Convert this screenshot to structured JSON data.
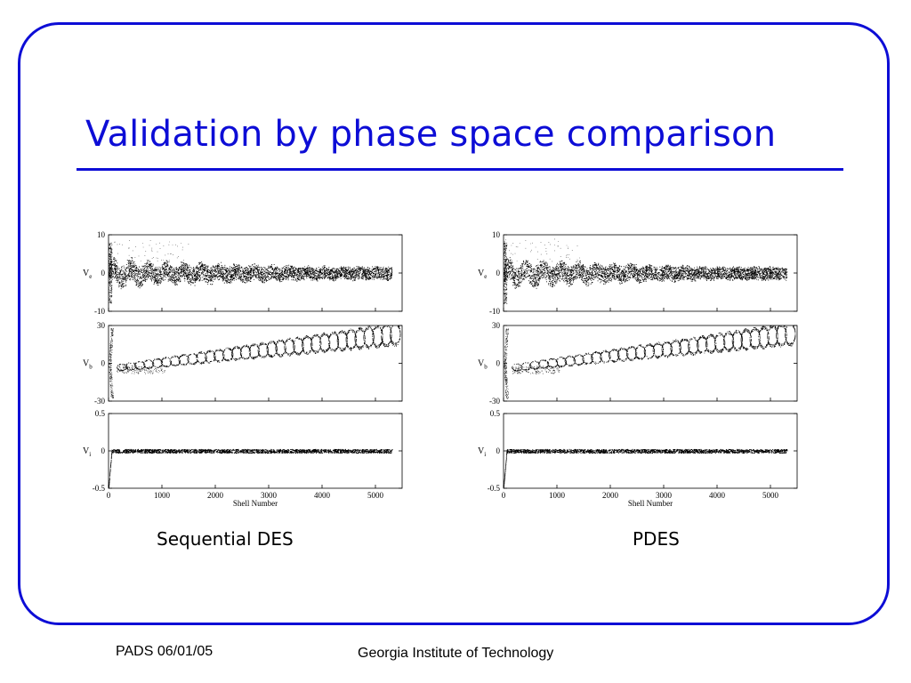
{
  "slide": {
    "title": "Validation by phase space comparison",
    "footer_left": "PADS 06/01/05",
    "footer_center": "Georgia Institute of Technology",
    "accent_color": "#0d0dd6"
  },
  "chart_data": [
    {
      "type": "scatter",
      "caption": "Sequential DES",
      "xlabel": "Shell Number",
      "xticks": [
        "0",
        "1000",
        "2000",
        "3000",
        "4000",
        "5000"
      ],
      "xlim": [
        0,
        5500
      ],
      "panels": [
        {
          "ylabel": "V",
          "ylabel_sub": "e",
          "ylim": [
            -10,
            10
          ],
          "yticks": [
            "10",
            "0",
            "-10"
          ],
          "pattern": "electron"
        },
        {
          "ylabel": "V",
          "ylabel_sub": "b",
          "ylim": [
            -30,
            30
          ],
          "yticks": [
            "30",
            "0",
            "-30"
          ],
          "pattern": "beam"
        },
        {
          "ylabel": "V",
          "ylabel_sub": "i",
          "ylim": [
            -0.5,
            0.5
          ],
          "yticks": [
            "0.5",
            "0",
            "-0.5"
          ],
          "pattern": "ion"
        }
      ]
    },
    {
      "type": "scatter",
      "caption": "PDES",
      "xlabel": "Shell Number",
      "xticks": [
        "0",
        "1000",
        "2000",
        "3000",
        "4000",
        "5000"
      ],
      "xlim": [
        0,
        5500
      ],
      "panels": [
        {
          "ylabel": "V",
          "ylabel_sub": "e",
          "ylim": [
            -10,
            10
          ],
          "yticks": [
            "10",
            "0",
            "-10"
          ],
          "pattern": "electron"
        },
        {
          "ylabel": "V",
          "ylabel_sub": "b",
          "ylim": [
            -30,
            30
          ],
          "yticks": [
            "30",
            "0",
            "-30"
          ],
          "pattern": "beam"
        },
        {
          "ylabel": "V",
          "ylabel_sub": "i",
          "ylim": [
            -0.5,
            0.5
          ],
          "yticks": [
            "0.5",
            "0",
            "-0.5"
          ],
          "pattern": "ion"
        }
      ]
    }
  ]
}
